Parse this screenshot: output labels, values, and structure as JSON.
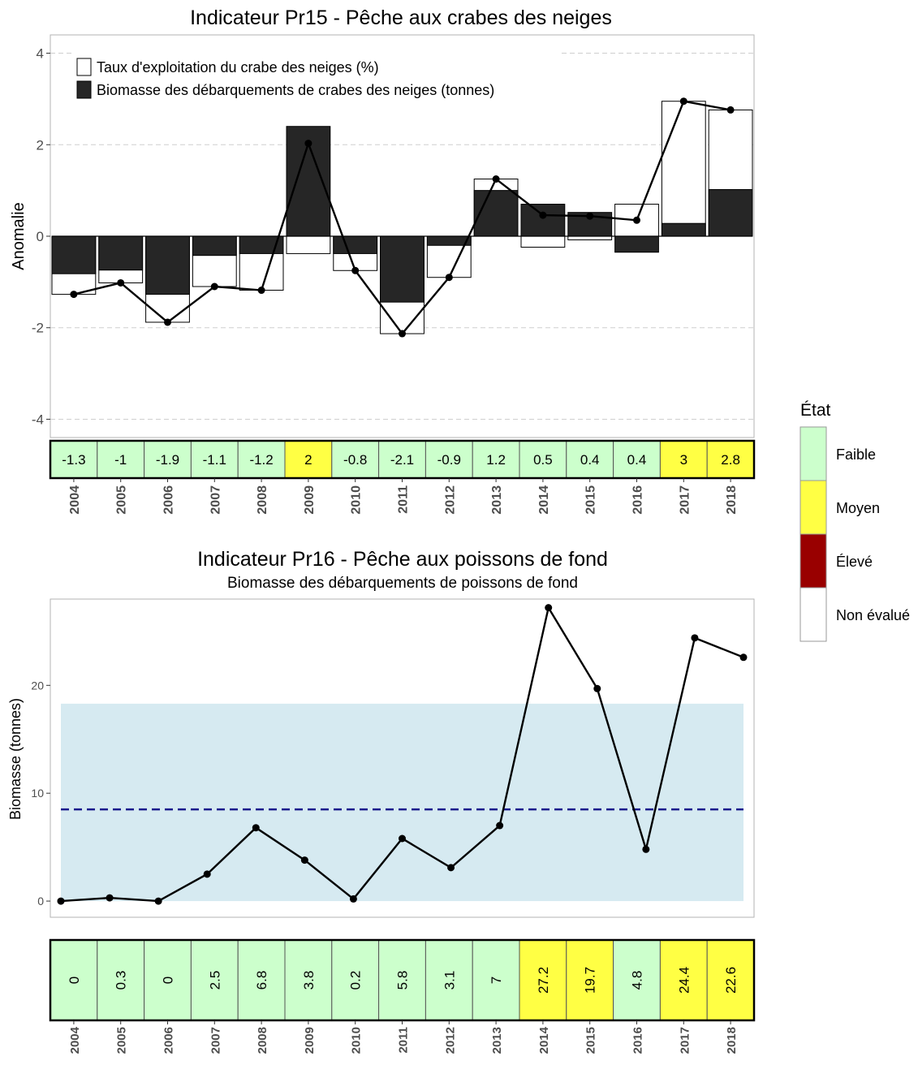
{
  "legend": {
    "title": "État",
    "items": [
      {
        "label": "Faible",
        "color": "#ccffcc"
      },
      {
        "label": "Moyen",
        "color": "#ffff44"
      },
      {
        "label": "Élevé",
        "color": "#990000"
      },
      {
        "label": "Non évalué",
        "color": "#ffffff"
      }
    ]
  },
  "colors": {
    "faible": "#ccffcc",
    "moyen": "#ffff44",
    "eleve": "#990000",
    "non_evalue": "#ffffff",
    "bar_dark": "#262626",
    "band": "#d6eaf1",
    "mean_line": "#1a1a8c",
    "grid": "#cfcfcf"
  },
  "chart_data": [
    {
      "type": "bar",
      "title": "Indicateur Pr15 - Pêche aux crabes des neiges",
      "ylabel": "Anomalie",
      "ylim": [
        -4.4,
        4.4
      ],
      "yticks": [
        -4,
        -2,
        0,
        2,
        4
      ],
      "grid": "horizontal dashed",
      "legend_position": "top-left",
      "categories": [
        "2004",
        "2005",
        "2006",
        "2007",
        "2008",
        "2009",
        "2010",
        "2011",
        "2012",
        "2013",
        "2014",
        "2015",
        "2016",
        "2017",
        "2018"
      ],
      "series": [
        {
          "name": "Taux d'exploitation du crabe des neiges (%)",
          "kind": "bar-outline",
          "values": [
            -1.27,
            -1.02,
            -1.88,
            -1.1,
            -1.18,
            -0.38,
            -0.75,
            -2.13,
            -0.9,
            1.25,
            -0.24,
            -0.08,
            0.7,
            2.95,
            2.76
          ]
        },
        {
          "name": "Biomasse des débarquements de crabes des neiges (tonnes)",
          "kind": "bar-filled",
          "values": [
            -0.82,
            -0.74,
            -1.27,
            -0.42,
            -0.38,
            2.4,
            -0.38,
            -1.44,
            -0.2,
            1.0,
            0.7,
            0.52,
            -0.35,
            0.28,
            1.02
          ]
        },
        {
          "kind": "line",
          "values": [
            -1.27,
            -1.02,
            -1.88,
            -1.1,
            -1.18,
            2.03,
            -0.75,
            -2.13,
            -0.9,
            1.25,
            0.46,
            0.44,
            0.35,
            2.95,
            2.76
          ]
        }
      ],
      "table": {
        "labels": [
          "-1.3",
          "-1",
          "-1.9",
          "-1.1",
          "-1.2",
          "2",
          "-0.8",
          "-2.1",
          "-0.9",
          "1.2",
          "0.5",
          "0.4",
          "0.4",
          "3",
          "2.8"
        ],
        "states": [
          "faible",
          "faible",
          "faible",
          "faible",
          "faible",
          "moyen",
          "faible",
          "faible",
          "faible",
          "faible",
          "faible",
          "faible",
          "faible",
          "moyen",
          "moyen"
        ]
      }
    },
    {
      "type": "line",
      "title": "Indicateur Pr16 - Pêche aux poissons de fond",
      "subtitle": "Biomasse des débarquements de poissons de fond",
      "ylabel": "Biomasse (tonnes)",
      "ylim": [
        -1.5,
        28
      ],
      "yticks": [
        0,
        10,
        20
      ],
      "grid": "none",
      "x": [
        "2004",
        "2005",
        "2006",
        "2007",
        "2008",
        "2009",
        "2010",
        "2011",
        "2012",
        "2013",
        "2014",
        "2015",
        "2016",
        "2017",
        "2018"
      ],
      "values": [
        0,
        0.3,
        0,
        2.5,
        6.8,
        3.8,
        0.2,
        5.8,
        3.1,
        7,
        27.2,
        19.7,
        4.8,
        24.4,
        22.6
      ],
      "band": [
        0,
        18.3
      ],
      "mean_line": 8.5,
      "table": {
        "labels": [
          "0",
          "0.3",
          "0",
          "2.5",
          "6.8",
          "3.8",
          "0.2",
          "5.8",
          "3.1",
          "7",
          "27.2",
          "19.7",
          "4.8",
          "24.4",
          "22.6"
        ],
        "states": [
          "faible",
          "faible",
          "faible",
          "faible",
          "faible",
          "faible",
          "faible",
          "faible",
          "faible",
          "faible",
          "moyen",
          "moyen",
          "faible",
          "moyen",
          "moyen"
        ]
      }
    }
  ]
}
